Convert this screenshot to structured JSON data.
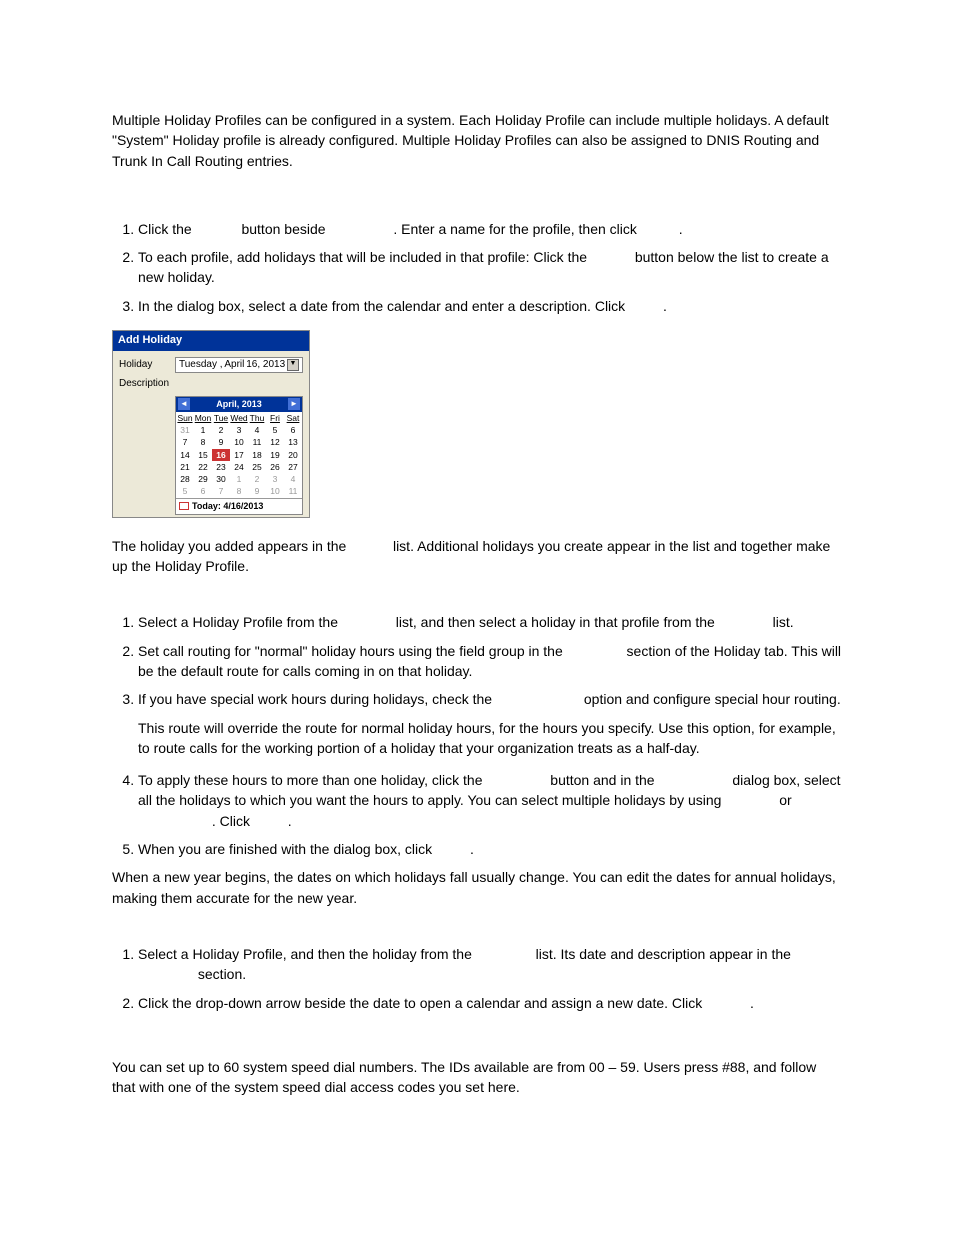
{
  "intro": "Multiple Holiday Profiles can be configured in a system. Each Holiday Profile can include multiple holidays. A default \"System\" Holiday profile is already configured. Multiple Holiday Profiles can also be assigned to DNIS Routing and Trunk In Call Routing entries.",
  "setA": {
    "s1": {
      "a": "Click the",
      "b": "button beside",
      "c": ". Enter a name for the profile, then click",
      "d": "."
    },
    "s2": {
      "a": "To each profile, add holidays that will be included in that profile: Click the",
      "b": "button below the list to create a new holiday."
    },
    "s3": {
      "a": "In the dialog box, select a date from the calendar and enter a description. Click",
      "b": "."
    }
  },
  "cal": {
    "title": "Add Holiday",
    "lblHoliday": "Holiday",
    "lblDesc": "Description",
    "dateText": {
      "dow": "Tuesday ,",
      "mon": "April",
      "dy": "16, 2013"
    },
    "monthTitle": "April, 2013",
    "dows": [
      "Sun",
      "Mon",
      "Tue",
      "Wed",
      "Thu",
      "Fri",
      "Sat"
    ],
    "rows": [
      [
        {
          "v": "31",
          "dim": true
        },
        {
          "v": "1"
        },
        {
          "v": "2"
        },
        {
          "v": "3"
        },
        {
          "v": "4"
        },
        {
          "v": "5"
        },
        {
          "v": "6"
        }
      ],
      [
        {
          "v": "7"
        },
        {
          "v": "8"
        },
        {
          "v": "9"
        },
        {
          "v": "10"
        },
        {
          "v": "11"
        },
        {
          "v": "12"
        },
        {
          "v": "13"
        }
      ],
      [
        {
          "v": "14"
        },
        {
          "v": "15"
        },
        {
          "v": "16",
          "today": true
        },
        {
          "v": "17"
        },
        {
          "v": "18"
        },
        {
          "v": "19"
        },
        {
          "v": "20"
        }
      ],
      [
        {
          "v": "21"
        },
        {
          "v": "22"
        },
        {
          "v": "23"
        },
        {
          "v": "24"
        },
        {
          "v": "25"
        },
        {
          "v": "26"
        },
        {
          "v": "27"
        }
      ],
      [
        {
          "v": "28"
        },
        {
          "v": "29"
        },
        {
          "v": "30"
        },
        {
          "v": "1",
          "dim": true
        },
        {
          "v": "2",
          "dim": true
        },
        {
          "v": "3",
          "dim": true
        },
        {
          "v": "4",
          "dim": true
        }
      ],
      [
        {
          "v": "5",
          "dim": true
        },
        {
          "v": "6",
          "dim": true
        },
        {
          "v": "7",
          "dim": true
        },
        {
          "v": "8",
          "dim": true
        },
        {
          "v": "9",
          "dim": true
        },
        {
          "v": "10",
          "dim": true
        },
        {
          "v": "11",
          "dim": true
        }
      ]
    ],
    "todayLabel": "Today: 4/16/2013"
  },
  "afterCal": "The holiday you added appears in the            list. Additional holidays you create appear in the list and together make up the Holiday Profile.",
  "setB": {
    "s1": {
      "a": "Select a Holiday Profile from the",
      "b": "list, and then select a holiday in that profile from the",
      "c": "list."
    },
    "s2": {
      "a": "Set call routing for \"normal\" holiday hours using the field group in the",
      "b": "section of the Holiday tab. This will be the default route for calls coming in on that holiday."
    },
    "s3": {
      "a": "If you have special work hours during holidays, check the",
      "b": "option and configure special hour routing."
    },
    "s3p": "This route will override the route for normal holiday hours, for the hours you specify. Use this option, for example, to route calls for the working portion of a holiday that your organization treats as a half-day.",
    "s4": {
      "a": "To apply these hours to more than one holiday, click the",
      "b": "button and in the",
      "c": "dialog box, select all the holidays to which you want the hours to apply. You can select multiple holidays by using",
      "d": "or",
      "e": ". Click",
      "f": "."
    },
    "s5": {
      "a": "When you are finished with the dialog box, click",
      "b": "."
    }
  },
  "bNote": "When a new year begins, the dates on which holidays fall usually change. You can edit the dates for annual holidays, making them accurate for the new year.",
  "setC": {
    "s1": {
      "a": "Select a Holiday Profile, and then the holiday from the",
      "b": "list. Its date and description appear in the",
      "c": "section."
    },
    "s2": {
      "a": "Click the drop-down arrow beside the date to open a calendar and assign a new date. Click",
      "b": "."
    }
  },
  "speed": "You can set up to 60 system speed dial numbers. The IDs available are from 00 – 59. Users press #88, and follow that with one of the system speed dial access codes you set here."
}
